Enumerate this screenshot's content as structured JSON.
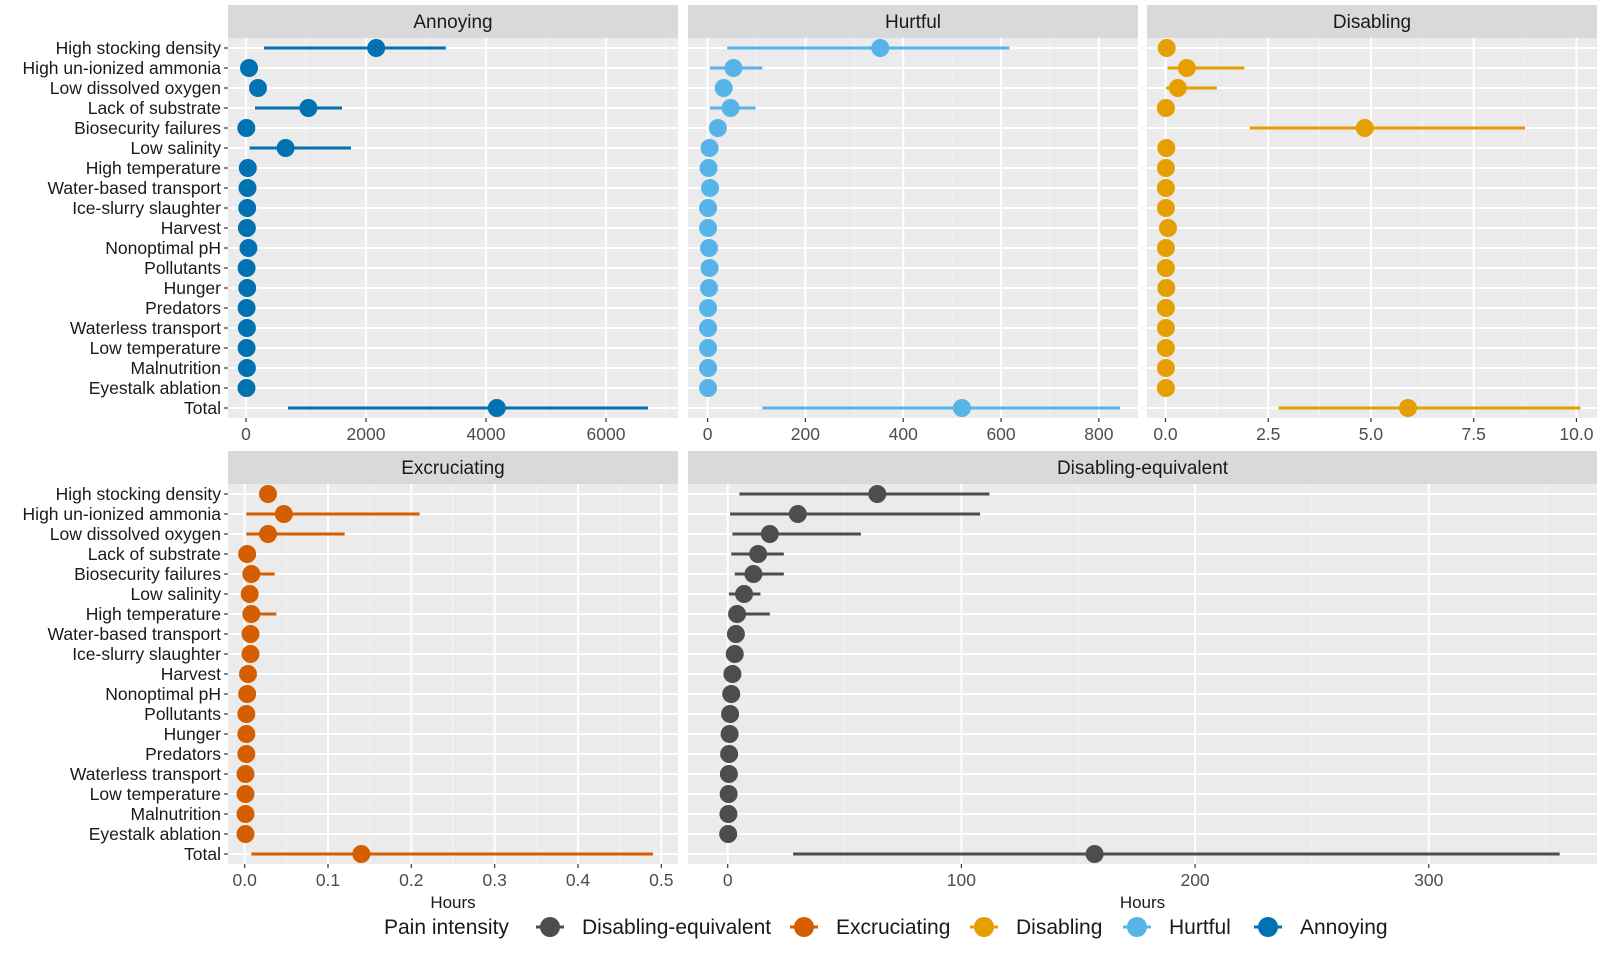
{
  "chart_data": {
    "type": "scatter",
    "subtype": "faceted-dot-with-interval",
    "xlabel": "Hours",
    "categories": [
      "High stocking density",
      "High un-ionized ammonia",
      "Low dissolved oxygen",
      "Lack of substrate",
      "Biosecurity failures",
      "Low salinity",
      "High temperature",
      "Water-based transport",
      "Ice-slurry slaughter",
      "Harvest",
      "Nonoptimal pH",
      "Pollutants",
      "Hunger",
      "Predators",
      "Waterless transport",
      "Low temperature",
      "Malnutrition",
      "Eyestalk ablation",
      "Total"
    ],
    "legend": {
      "title": "Pain intensity",
      "position": "bottom",
      "items": [
        {
          "label": "Disabling-equivalent",
          "color": "#4d4d4d"
        },
        {
          "label": "Excruciating",
          "color": "#d55e00"
        },
        {
          "label": "Disabling",
          "color": "#e69f00"
        },
        {
          "label": "Hurtful",
          "color": "#56b4e9"
        },
        {
          "label": "Annoying",
          "color": "#0072b2"
        }
      ]
    },
    "panels": [
      {
        "title": "Annoying",
        "color": "#0072b2",
        "xlim": [
          -300,
          7200
        ],
        "xticks": [
          0,
          2000,
          4000,
          6000
        ],
        "xtick_labels": [
          "0",
          "2000",
          "4000",
          "6000"
        ],
        "show_xlabel": false,
        "values": [
          2170,
          50,
          200,
          1040,
          5,
          660,
          30,
          25,
          20,
          15,
          40,
          10,
          20,
          10,
          15,
          10,
          15,
          8,
          4180
        ],
        "lower": [
          300,
          null,
          null,
          150,
          null,
          60,
          null,
          null,
          null,
          null,
          null,
          null,
          null,
          null,
          null,
          null,
          null,
          null,
          700
        ],
        "upper": [
          3330,
          null,
          null,
          1600,
          null,
          1750,
          null,
          null,
          null,
          null,
          null,
          null,
          null,
          null,
          null,
          null,
          null,
          null,
          6700
        ]
      },
      {
        "title": "Hurtful",
        "color": "#56b4e9",
        "xlim": [
          -40,
          880
        ],
        "xticks": [
          0,
          200,
          400,
          600,
          800
        ],
        "xtick_labels": [
          "0",
          "200",
          "400",
          "600",
          "800"
        ],
        "show_xlabel": false,
        "values": [
          353,
          53,
          33,
          47,
          21,
          4,
          2,
          5,
          1,
          1,
          3,
          4,
          3,
          1,
          1,
          1,
          1,
          1,
          520
        ],
        "lower": [
          40,
          5,
          null,
          5,
          null,
          null,
          null,
          null,
          null,
          null,
          null,
          null,
          null,
          null,
          null,
          null,
          null,
          null,
          112
        ],
        "upper": [
          617,
          112,
          null,
          98,
          null,
          null,
          null,
          null,
          null,
          null,
          null,
          null,
          null,
          null,
          null,
          null,
          null,
          null,
          843
        ]
      },
      {
        "title": "Disabling",
        "color": "#e69f00",
        "xlim": [
          -0.45,
          10.5
        ],
        "xticks": [
          0,
          2.5,
          5,
          7.5,
          10
        ],
        "xtick_labels": [
          "0.0",
          "2.5",
          "5.0",
          "7.5",
          "10.0"
        ],
        "show_xlabel": false,
        "values": [
          0.03,
          0.52,
          0.3,
          0.01,
          4.85,
          0.02,
          0.01,
          0.01,
          0.01,
          0.06,
          0.01,
          0.01,
          0.02,
          0.01,
          0.01,
          0.01,
          0.01,
          0.01,
          5.9
        ],
        "lower": [
          null,
          0.05,
          0.02,
          null,
          2.05,
          null,
          null,
          null,
          null,
          null,
          null,
          null,
          null,
          null,
          null,
          null,
          null,
          null,
          2.75
        ],
        "upper": [
          null,
          1.92,
          1.25,
          null,
          8.75,
          null,
          null,
          null,
          null,
          null,
          null,
          null,
          null,
          null,
          null,
          null,
          null,
          null,
          10.1
        ]
      },
      {
        "title": "Excruciating",
        "color": "#d55e00",
        "xlim": [
          -0.02,
          0.52
        ],
        "xticks": [
          0,
          0.1,
          0.2,
          0.3,
          0.4,
          0.5
        ],
        "xtick_labels": [
          "0.0",
          "0.1",
          "0.2",
          "0.3",
          "0.4",
          "0.5"
        ],
        "show_xlabel": true,
        "values": [
          0.028,
          0.047,
          0.028,
          0.003,
          0.008,
          0.006,
          0.008,
          0.007,
          0.007,
          0.004,
          0.003,
          0.002,
          0.002,
          0.002,
          0.001,
          0.001,
          0.001,
          0.001,
          0.14
        ],
        "lower": [
          null,
          0.002,
          0.002,
          null,
          0.003,
          null,
          0.002,
          null,
          null,
          null,
          null,
          null,
          null,
          null,
          null,
          null,
          null,
          null,
          0.008
        ],
        "upper": [
          null,
          0.21,
          0.12,
          null,
          0.036,
          null,
          0.038,
          0.02,
          null,
          null,
          null,
          null,
          null,
          null,
          null,
          null,
          null,
          null,
          0.49
        ]
      },
      {
        "title": "Disabling-equivalent",
        "color": "#4d4d4d",
        "xlim": [
          -17,
          372
        ],
        "xticks": [
          0,
          100,
          200,
          300
        ],
        "xtick_labels": [
          "0",
          "100",
          "200",
          "300"
        ],
        "show_xlabel": true,
        "values": [
          64,
          30,
          18,
          13,
          11,
          7,
          4,
          3.5,
          3,
          2,
          1.5,
          1,
          0.8,
          0.6,
          0.5,
          0.4,
          0.3,
          0.2,
          157
        ],
        "lower": [
          5,
          1,
          2,
          1.5,
          3,
          0.5,
          0.5,
          null,
          null,
          null,
          null,
          null,
          null,
          null,
          null,
          null,
          null,
          null,
          28
        ],
        "upper": [
          112,
          108,
          57,
          24,
          24,
          14,
          18,
          8,
          null,
          null,
          null,
          null,
          null,
          null,
          null,
          null,
          null,
          null,
          356
        ]
      }
    ]
  }
}
